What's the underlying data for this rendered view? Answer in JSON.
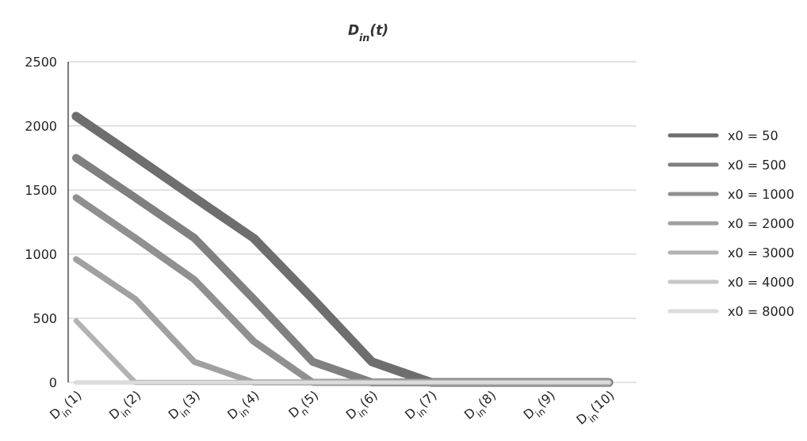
{
  "chart_data": {
    "type": "line",
    "title": "D$_{in}$(t)",
    "categories": [
      "D$_{in}$(1)",
      "D$_{in}$(2)",
      "D$_{in}$(3)",
      "D$_{in}$(4)",
      "D$_{n}$(5)",
      "D$_{in}$(6)",
      "D$_{in}$(7)",
      "D$_{in}$(8)",
      "D$_{in}$(9)",
      "D$_{in}$(10)"
    ],
    "series": [
      {
        "name": "x0 = 50",
        "color": "#6e6e6e",
        "values": [
          2075,
          1760,
          1440,
          1125,
          650,
          160,
          0,
          0,
          0,
          0
        ]
      },
      {
        "name": "x0 = 500",
        "color": "#808080",
        "values": [
          1750,
          1440,
          1125,
          650,
          160,
          0,
          0,
          0,
          0,
          0
        ]
      },
      {
        "name": "x0 = 1000",
        "color": "#909090",
        "values": [
          1440,
          1125,
          800,
          320,
          0,
          0,
          0,
          0,
          0,
          0
        ]
      },
      {
        "name": "x0 = 2000",
        "color": "#a0a0a0",
        "values": [
          960,
          650,
          160,
          0,
          0,
          0,
          0,
          0,
          0,
          0
        ]
      },
      {
        "name": "x0 = 3000",
        "color": "#b2b2b2",
        "values": [
          480,
          0,
          0,
          0,
          0,
          0,
          0,
          0,
          0,
          0
        ]
      },
      {
        "name": "x0 = 4000",
        "color": "#c6c6c6",
        "values": [
          0,
          0,
          0,
          0,
          0,
          0,
          0,
          0,
          0,
          0
        ]
      },
      {
        "name": "x0 = 8000",
        "color": "#dcdcdc",
        "values": [
          0,
          0,
          0,
          0,
          0,
          0,
          0,
          0,
          0,
          0
        ]
      }
    ],
    "ylim": [
      0,
      2500
    ],
    "yticks": [
      0,
      500,
      1000,
      1500,
      2000,
      2500
    ],
    "grid": "y",
    "legend": "right",
    "marker": "none",
    "line_style": "solid"
  }
}
